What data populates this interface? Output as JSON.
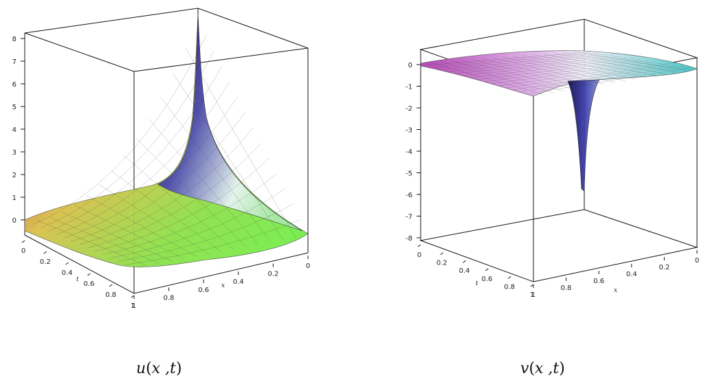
{
  "chart_data": [
    {
      "type": "surface3d",
      "caption": "u(x ,t)",
      "caption_func": "u",
      "caption_args": "x ,t",
      "xlabel": "x",
      "ylabel": "t",
      "zlabel": "",
      "x_ticks": [
        "1",
        "0.8",
        "0.6",
        "0.4",
        "0.2",
        "0"
      ],
      "t_ticks": [
        "0",
        "0.2",
        "0.4",
        "0.6",
        "0.8",
        "1"
      ],
      "z_ticks": [
        "0",
        "1",
        "2",
        "3",
        "4",
        "5",
        "6",
        "7",
        "8"
      ],
      "xlim": [
        0,
        1
      ],
      "tlim": [
        0,
        1
      ],
      "zlim": [
        -1,
        8
      ],
      "surface_description": "peak near x=1, t=0 rising to ~8; near 0 elsewhere",
      "colormap": "rainbow",
      "grid": true
    },
    {
      "type": "surface3d",
      "caption": "v(x ,t)",
      "caption_func": "v",
      "caption_args": "x ,t",
      "xlabel": "x",
      "ylabel": "t",
      "zlabel": "",
      "x_ticks": [
        "1",
        "0.8",
        "0.6",
        "0.4",
        "0.2",
        "0"
      ],
      "t_ticks": [
        "0",
        "0.2",
        "0.4",
        "0.6",
        "0.8",
        "1"
      ],
      "z_ticks": [
        "0",
        "-1",
        "-2",
        "-3",
        "-4",
        "-5",
        "-6",
        "-7",
        "-8"
      ],
      "xlim": [
        0,
        1
      ],
      "tlim": [
        0,
        1
      ],
      "zlim": [
        -8,
        0
      ],
      "surface_description": "flat near 0 with downward spike toward -6 near x=1, t=0",
      "colormap": "magenta-cyan",
      "grid": true
    }
  ]
}
